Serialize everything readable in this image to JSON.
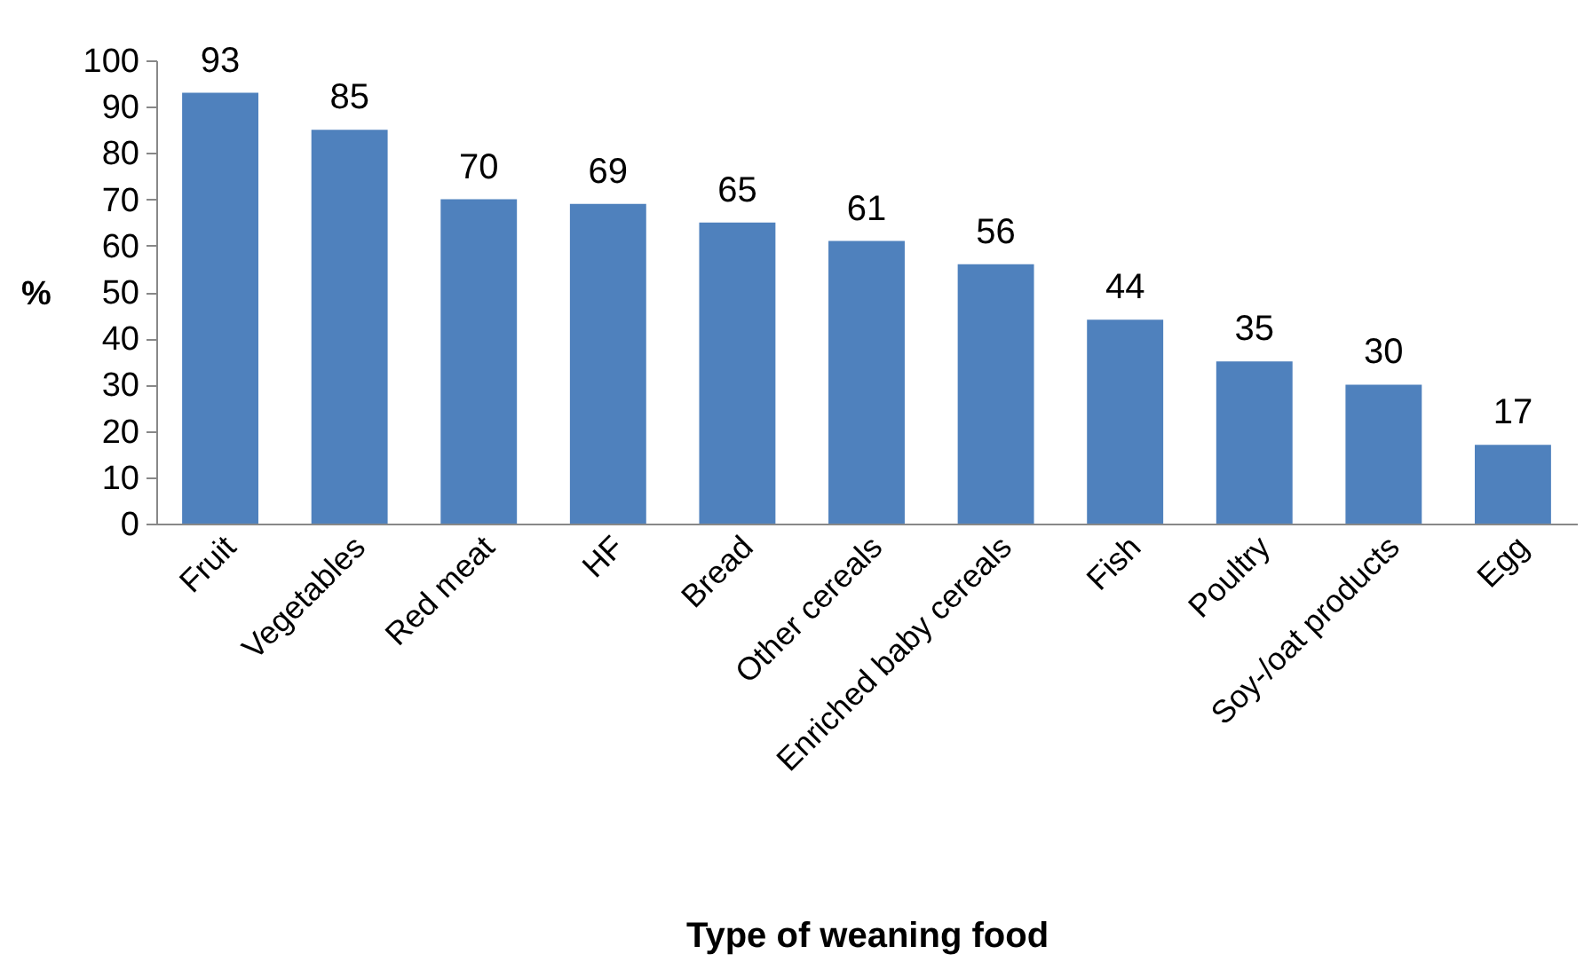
{
  "chart_data": {
    "type": "bar",
    "xlabel": "Type of weaning food",
    "ylabel": "%",
    "categories": [
      "Fruit",
      "Vegetables",
      "Red meat",
      "HF",
      "Bread",
      "Other cereals",
      "Enriched baby cereals",
      "Fish",
      "Poultry",
      "Soy-/oat products",
      "Egg"
    ],
    "values": [
      93,
      85,
      70,
      69,
      65,
      61,
      56,
      44,
      35,
      30,
      17
    ],
    "color": "#4f81bd",
    "ylim": [
      0,
      100
    ],
    "yticks": [
      0,
      10,
      20,
      30,
      40,
      50,
      60,
      70,
      80,
      90,
      100
    ],
    "data_labels": true
  }
}
